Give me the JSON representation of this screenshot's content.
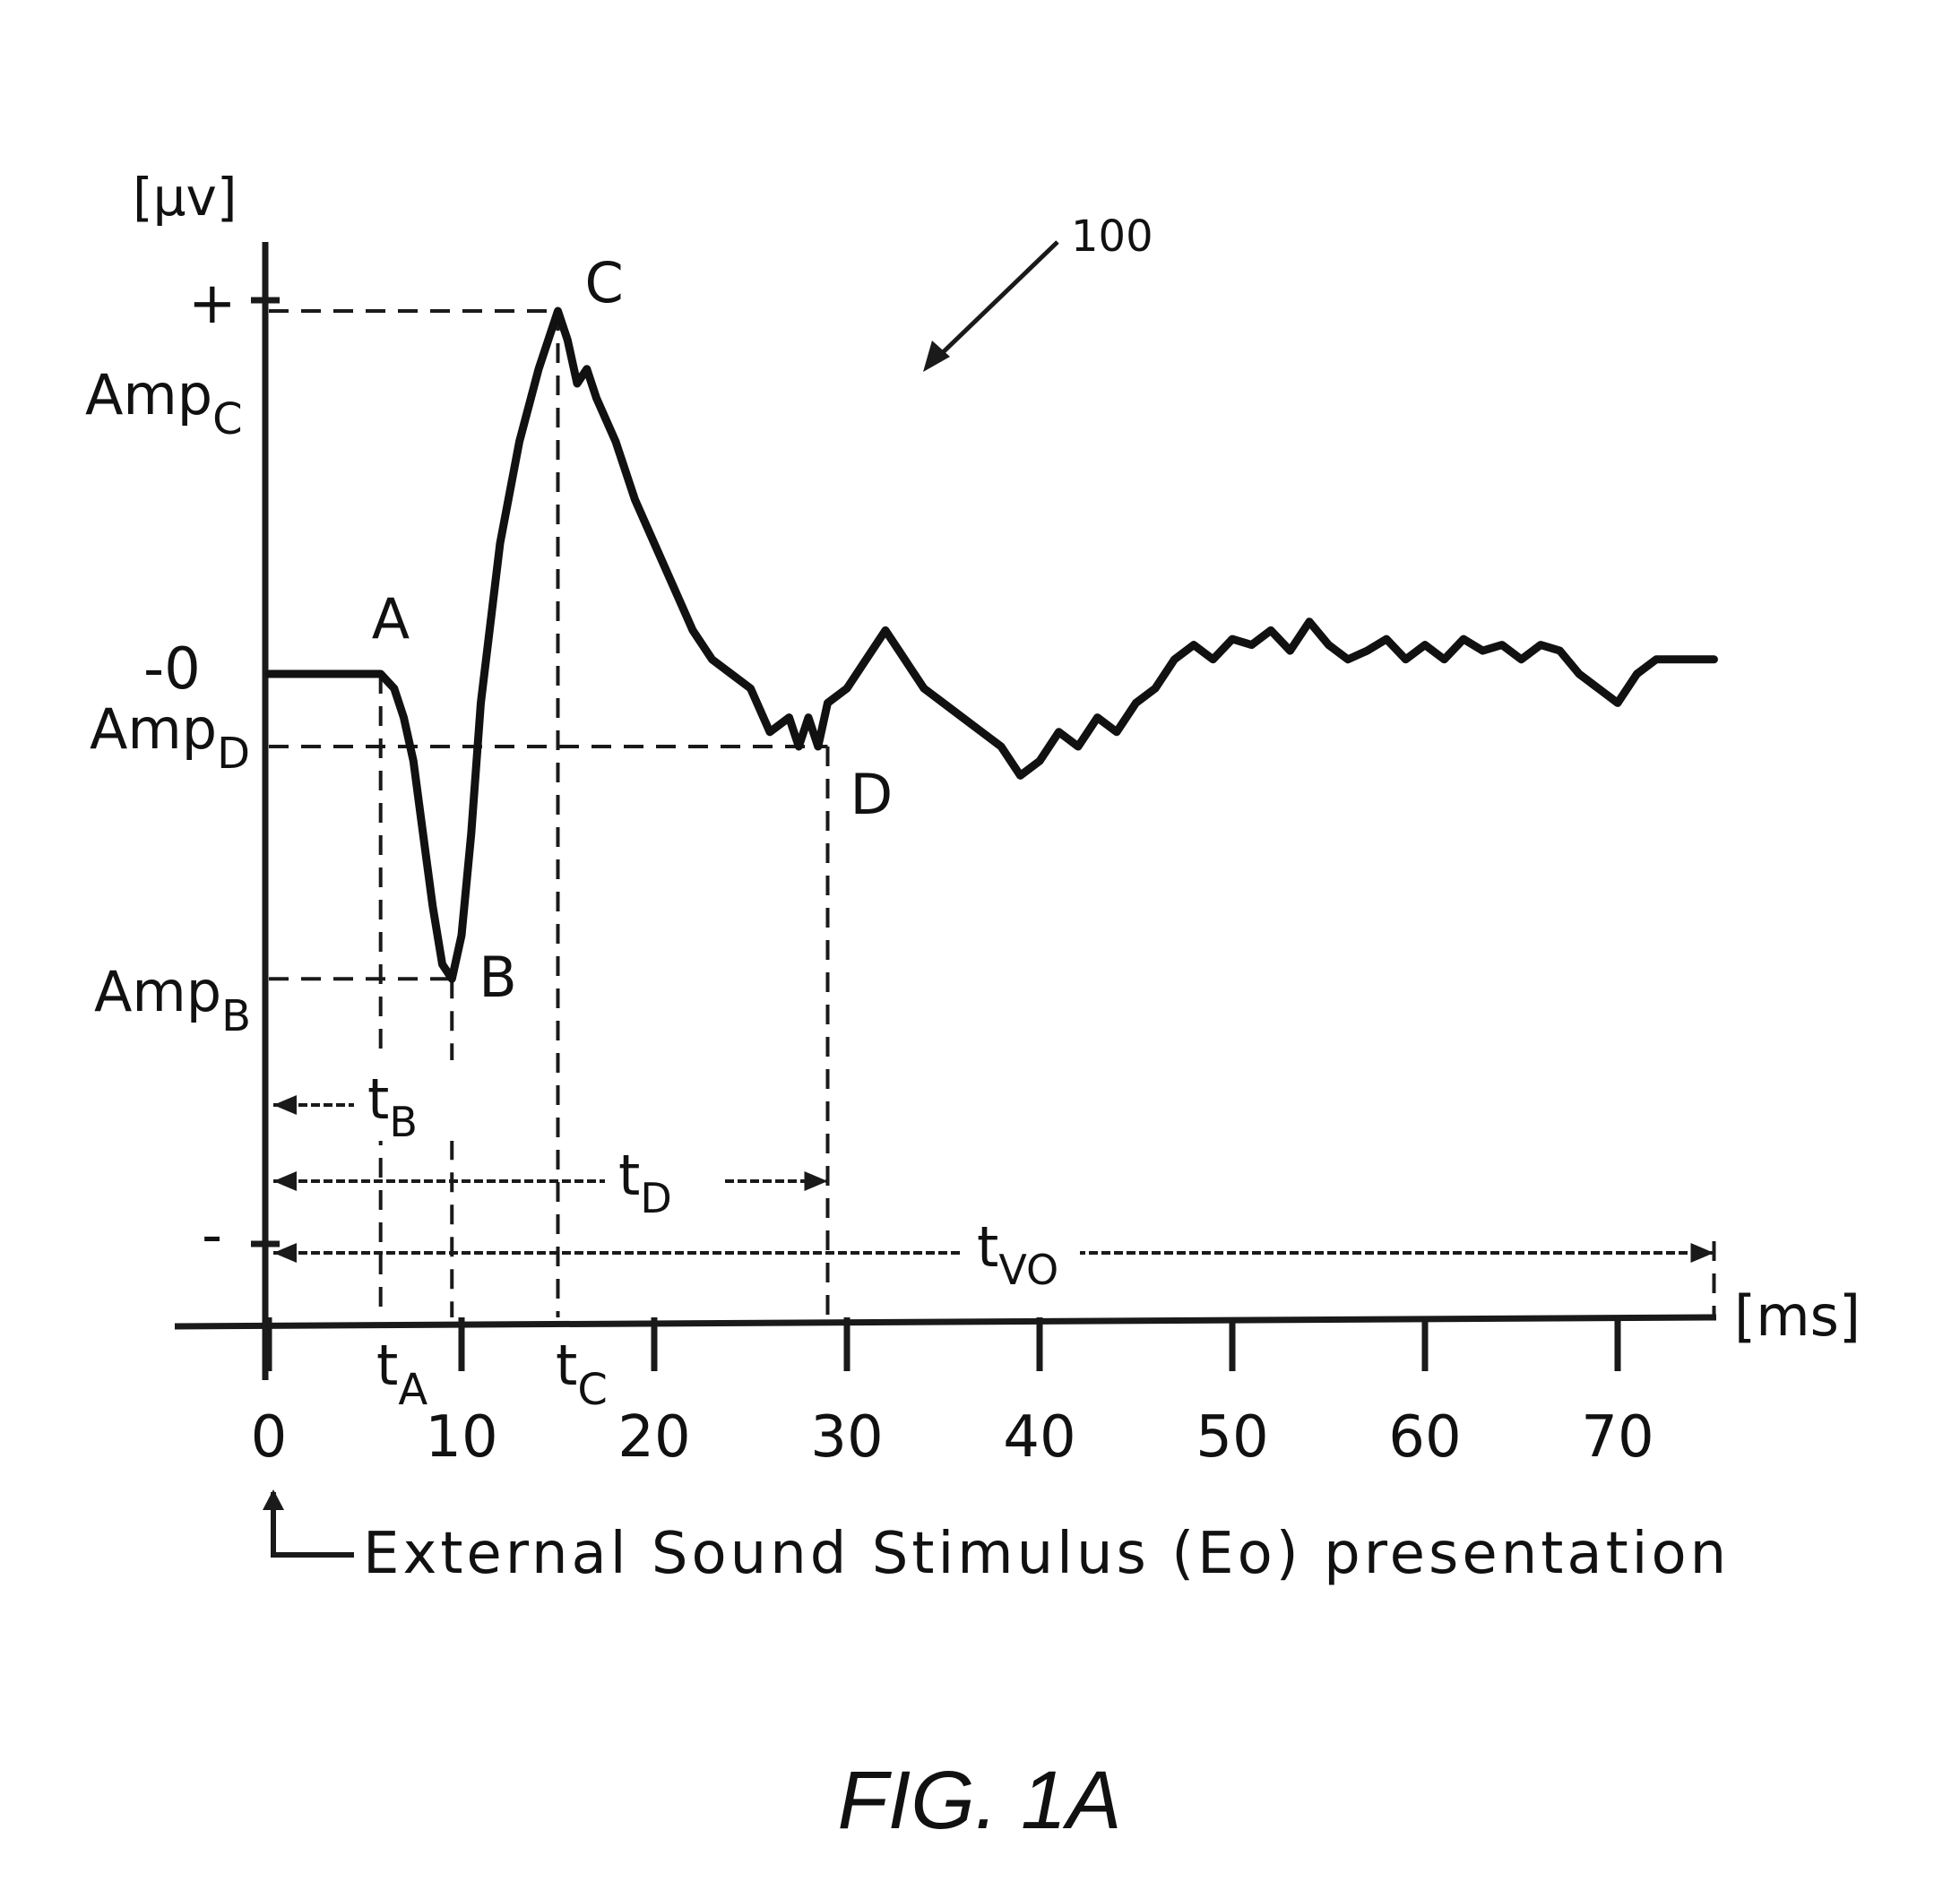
{
  "chart_data": {
    "type": "line",
    "xlabel": "[ms]",
    "ylabel": "[μv]",
    "xlim": [
      0,
      75
    ],
    "x_ticks": [
      "0",
      "10",
      "20",
      "30",
      "40",
      "50",
      "60",
      "70"
    ],
    "y_tick_labels": {
      "plus": "+",
      "zero": "-0",
      "minus": "-",
      "amp_c": {
        "main": "Amp",
        "sub": "C"
      },
      "amp_d": {
        "main": "Amp",
        "sub": "D"
      },
      "amp_b": {
        "main": "Amp",
        "sub": "B"
      }
    },
    "series": [
      {
        "x": [
          0,
          1,
          2,
          3,
          4,
          5,
          5.8,
          6.5,
          7,
          7.5,
          8,
          8.5,
          9,
          9.5,
          10,
          10.5,
          11,
          12,
          13,
          14,
          15,
          15.5,
          16,
          16.5,
          17,
          18,
          19,
          20,
          21,
          22,
          23,
          24,
          25,
          26,
          27,
          27.5,
          28,
          28.5,
          29,
          30,
          31,
          32,
          33,
          34,
          35,
          36,
          37,
          38,
          39,
          40,
          41,
          42,
          43,
          44,
          45,
          46,
          47,
          48,
          49,
          50,
          51,
          52,
          53,
          54,
          55,
          56,
          57,
          58,
          59,
          60,
          61,
          62,
          63,
          64,
          65,
          66,
          67,
          68,
          69,
          70,
          71,
          72,
          73,
          74,
          75
        ],
        "y": [
          0,
          0,
          0,
          0,
          0,
          0,
          0,
          -0.05,
          -0.15,
          -0.3,
          -0.55,
          -0.8,
          -1.0,
          -1.05,
          -0.9,
          -0.55,
          -0.1,
          0.45,
          0.8,
          1.05,
          1.25,
          1.15,
          1.0,
          1.05,
          0.95,
          0.8,
          0.6,
          0.45,
          0.3,
          0.15,
          0.05,
          0.0,
          -0.05,
          -0.2,
          -0.15,
          -0.25,
          -0.15,
          -0.25,
          -0.1,
          -0.05,
          0.05,
          0.15,
          0.05,
          -0.05,
          -0.1,
          -0.15,
          -0.2,
          -0.25,
          -0.35,
          -0.3,
          -0.2,
          -0.25,
          -0.15,
          -0.2,
          -0.1,
          -0.05,
          0.05,
          0.1,
          0.05,
          0.12,
          0.1,
          0.15,
          0.08,
          0.18,
          0.1,
          0.05,
          0.08,
          0.12,
          0.05,
          0.1,
          0.05,
          0.12,
          0.08,
          0.1,
          0.05,
          0.1,
          0.08,
          0.0,
          -0.05,
          -0.1,
          0.0,
          0.05,
          0.05,
          0.05,
          0.05
        ]
      }
    ],
    "points": [
      {
        "label": "A",
        "x": 5.8,
        "y": 0
      },
      {
        "label": "B",
        "x": 9.5,
        "y": -1.05
      },
      {
        "label": "C",
        "x": 15,
        "y": 1.25
      },
      {
        "label": "D",
        "x": 29,
        "y": -0.25
      }
    ],
    "time_marks": {
      "t_a": {
        "main": "t",
        "sub": "A"
      },
      "t_c": {
        "main": "t",
        "sub": "C"
      }
    },
    "intervals": [
      {
        "main": "t",
        "sub": "B",
        "end": 9.5
      },
      {
        "main": "t",
        "sub": "D",
        "end": 29
      },
      {
        "main": "t",
        "sub": "VO",
        "end": 75
      }
    ],
    "annotation_stimulus": "External Sound Stimulus (Eo) presentation",
    "reference_numeral": "100",
    "caption": "FIG. 1A"
  }
}
